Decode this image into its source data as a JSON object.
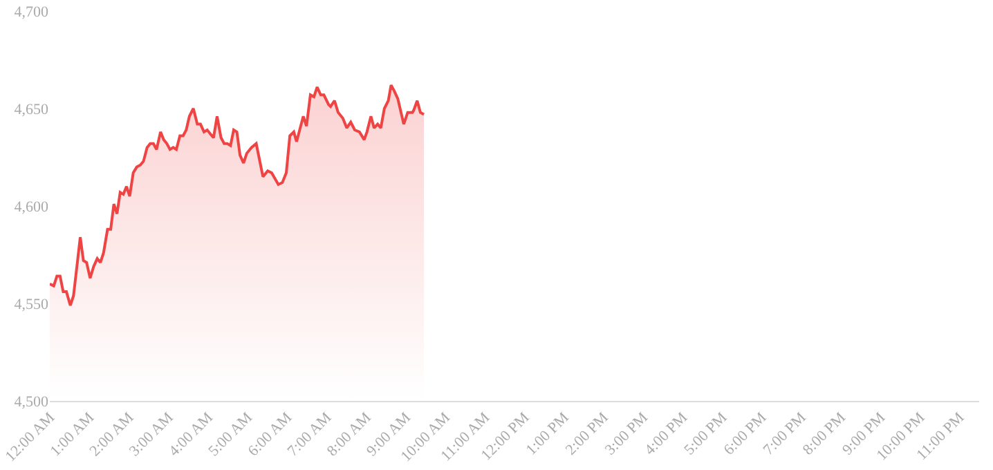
{
  "chart_data": {
    "type": "area",
    "x": [
      0,
      0.1,
      0.18,
      0.26,
      0.34,
      0.42,
      0.52,
      0.6,
      0.68,
      0.77,
      0.85,
      0.93,
      1.02,
      1.11,
      1.2,
      1.28,
      1.36,
      1.46,
      1.54,
      1.62,
      1.7,
      1.78,
      1.86,
      1.94,
      2.02,
      2.11,
      2.2,
      2.29,
      2.37,
      2.46,
      2.54,
      2.62,
      2.7,
      2.8,
      2.88,
      2.96,
      3.04,
      3.12,
      3.2,
      3.29,
      3.37,
      3.45,
      3.53,
      3.63,
      3.73,
      3.81,
      3.9,
      3.98,
      4.06,
      4.14,
      4.23,
      4.33,
      4.41,
      4.49,
      4.57,
      4.65,
      4.73,
      4.81,
      4.9,
      4.98,
      5.1,
      5.22,
      5.29,
      5.39,
      5.51,
      5.61,
      5.78,
      5.88,
      5.98,
      6.07,
      6.17,
      6.24,
      6.41,
      6.49,
      6.59,
      6.68,
      6.76,
      6.85,
      6.93,
      7.05,
      7.1,
      7.2,
      7.29,
      7.41,
      7.51,
      7.61,
      7.71,
      7.83,
      7.95,
      8.02,
      8.12,
      8.2,
      8.29,
      8.37,
      8.46,
      8.56,
      8.63,
      8.71,
      8.8,
      8.95,
      9.05,
      9.17,
      9.2,
      9.29,
      9.37,
      9.46
    ],
    "series": [
      {
        "color": "#ef4444",
        "values": [
          4560,
          4559,
          4564,
          4564,
          4556,
          4556,
          4549,
          4554,
          4568,
          4584,
          4572,
          4571,
          4563,
          4569,
          4573,
          4571,
          4576,
          4588,
          4588,
          4601,
          4596,
          4607,
          4606,
          4610,
          4605,
          4617,
          4620,
          4621,
          4623,
          4630,
          4632,
          4632,
          4629,
          4638,
          4634,
          4632,
          4629,
          4630,
          4629,
          4636,
          4636,
          4639,
          4646,
          4650,
          4642,
          4642,
          4638,
          4639,
          4637,
          4635,
          4646,
          4635,
          4632,
          4632,
          4631,
          4639,
          4638,
          4626,
          4622,
          4627,
          4630,
          4632,
          4625,
          4615,
          4618,
          4617,
          4611,
          4612,
          4617,
          4636,
          4638,
          4633,
          4646,
          4641,
          4657,
          4656,
          4661,
          4657,
          4657,
          4652,
          4651,
          4654,
          4648,
          4645,
          4640,
          4643,
          4639,
          4638,
          4634,
          4638,
          4646,
          4640,
          4642,
          4640,
          4650,
          4654,
          4662,
          4659,
          4655,
          4642,
          4648,
          4648,
          4649,
          4654,
          4648,
          4647
        ]
      }
    ],
    "xlim": [
      0,
      23.5
    ],
    "xticks": [
      {
        "value": 0,
        "label": "12:00 AM"
      },
      {
        "value": 1,
        "label": "1:00 AM"
      },
      {
        "value": 2,
        "label": "2:00 AM"
      },
      {
        "value": 3,
        "label": "3:00 AM"
      },
      {
        "value": 4,
        "label": "4:00 AM"
      },
      {
        "value": 5,
        "label": "5:00 AM"
      },
      {
        "value": 6,
        "label": "6:00 AM"
      },
      {
        "value": 7,
        "label": "7:00 AM"
      },
      {
        "value": 8,
        "label": "8:00 AM"
      },
      {
        "value": 9,
        "label": "9:00 AM"
      },
      {
        "value": 10,
        "label": "10:00 AM"
      },
      {
        "value": 11,
        "label": "11:00 AM"
      },
      {
        "value": 12,
        "label": "12:00 PM"
      },
      {
        "value": 13,
        "label": "1:00 PM"
      },
      {
        "value": 14,
        "label": "2:00 PM"
      },
      {
        "value": 15,
        "label": "3:00 PM"
      },
      {
        "value": 16,
        "label": "4:00 PM"
      },
      {
        "value": 17,
        "label": "5:00 PM"
      },
      {
        "value": 18,
        "label": "6:00 PM"
      },
      {
        "value": 19,
        "label": "7:00 PM"
      },
      {
        "value": 20,
        "label": "8:00 PM"
      },
      {
        "value": 21,
        "label": "9:00 PM"
      },
      {
        "value": 22,
        "label": "10:00 PM"
      },
      {
        "value": 23,
        "label": "11:00 PM"
      }
    ],
    "ylim": [
      4500,
      4700
    ],
    "yticks": [
      {
        "value": 4500,
        "label": "4,500"
      },
      {
        "value": 4550,
        "label": "4,550"
      },
      {
        "value": 4600,
        "label": "4,600"
      },
      {
        "value": 4650,
        "label": "4,650"
      },
      {
        "value": 4700,
        "label": "4,700"
      }
    ],
    "grid": false,
    "marker": "none",
    "line_style": "solid"
  }
}
